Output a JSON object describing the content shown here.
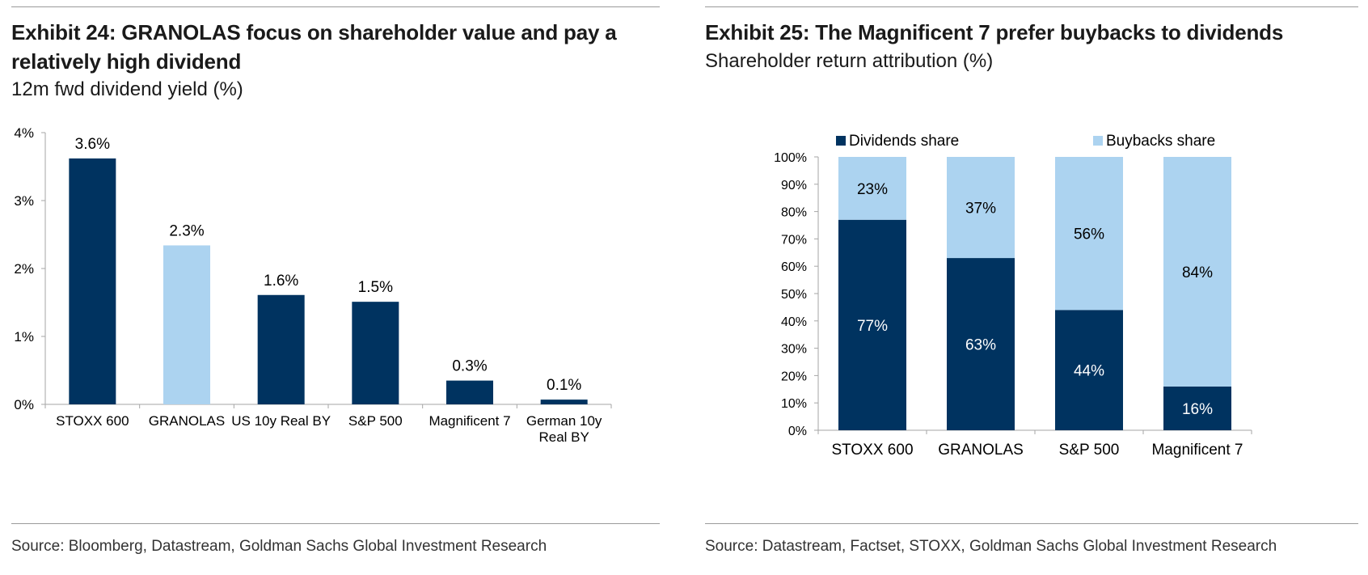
{
  "colors": {
    "dark_navy": "#003360",
    "light_blue": "#acd3f0",
    "axis": "#a6a6a6",
    "rule": "#9a9a9a"
  },
  "chart_data": [
    {
      "type": "bar",
      "title": "Exhibit 24: GRANOLAS focus on shareholder value and pay a relatively high dividend",
      "subtitle": "12m fwd dividend yield (%)",
      "categories": [
        "STOXX 600",
        "GRANOLAS",
        "US 10y Real BY",
        "S&P 500",
        "Magnificent 7",
        "German 10y Real BY"
      ],
      "values": [
        3.6,
        2.3,
        1.6,
        1.5,
        0.3,
        0.1
      ],
      "plot_values": [
        3.62,
        2.34,
        1.61,
        1.51,
        0.35,
        0.07
      ],
      "data_labels": [
        "3.6%",
        "2.3%",
        "1.6%",
        "1.5%",
        "0.3%",
        "0.1%"
      ],
      "highlight_index": 1,
      "ylim": [
        0,
        4
      ],
      "yticks": [
        "0%",
        "1%",
        "2%",
        "3%",
        "4%"
      ],
      "xlabel": "",
      "ylabel": "",
      "grid": false,
      "source": "Source: Bloomberg, Datastream, Goldman Sachs Global Investment Research"
    },
    {
      "type": "bar",
      "stacked": true,
      "title": "Exhibit 25: The Magnificent 7 prefer buybacks to dividends",
      "subtitle": "Shareholder return attribution (%)",
      "categories": [
        "STOXX 600",
        "GRANOLAS",
        "S&P 500",
        "Magnificent 7"
      ],
      "series": [
        {
          "name": "Dividends share",
          "values": [
            77,
            63,
            44,
            16
          ],
          "labels": [
            "77%",
            "63%",
            "44%",
            "16%"
          ]
        },
        {
          "name": "Buybacks share",
          "values": [
            23,
            37,
            56,
            84
          ],
          "labels": [
            "23%",
            "37%",
            "56%",
            "84%"
          ]
        }
      ],
      "ylim": [
        0,
        100
      ],
      "yticks": [
        "0%",
        "10%",
        "20%",
        "30%",
        "40%",
        "50%",
        "60%",
        "70%",
        "80%",
        "90%",
        "100%"
      ],
      "legend_position": "top",
      "xlabel": "",
      "ylabel": "",
      "grid": false,
      "source": "Source: Datastream, Factset, STOXX, Goldman Sachs Global Investment Research"
    }
  ]
}
